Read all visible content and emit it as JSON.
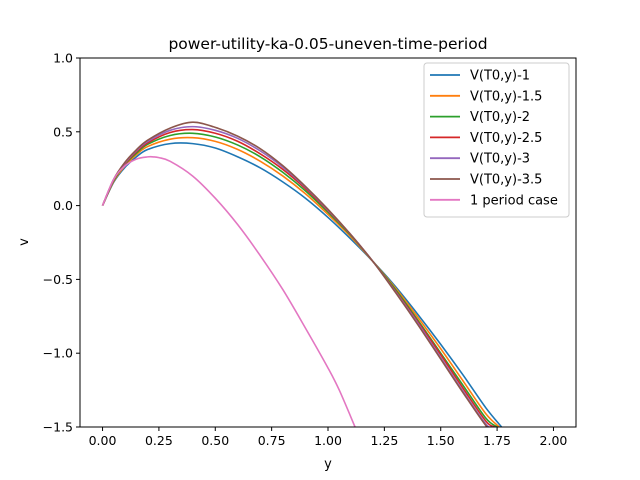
{
  "chart_data": {
    "type": "line",
    "title": "power-utility-ka-0.05-uneven-time-period",
    "xlabel": "y",
    "ylabel": "v",
    "xlim": [
      -0.1,
      2.1
    ],
    "ylim": [
      -1.5,
      1.0
    ],
    "xticks": [
      0.0,
      0.25,
      0.5,
      0.75,
      1.0,
      1.25,
      1.5,
      1.75,
      2.0
    ],
    "xtick_labels": [
      "0.00",
      "0.25",
      "0.50",
      "0.75",
      "1.00",
      "1.25",
      "1.50",
      "1.75",
      "2.00"
    ],
    "yticks": [
      -1.5,
      -1.0,
      -0.5,
      0.0,
      0.5,
      1.0
    ],
    "ytick_labels": [
      "−1.5",
      "−1.0",
      "−0.5",
      "0.0",
      "0.5",
      "1.0"
    ],
    "legend_position": "top-right",
    "series": [
      {
        "name": "V(T0,y)-1",
        "color": "#1f77b4",
        "x": [
          0.0,
          0.05,
          0.1,
          0.15,
          0.2,
          0.3,
          0.4,
          0.5,
          0.6,
          0.7,
          0.8,
          0.9,
          1.0,
          1.1,
          1.2,
          1.3,
          1.4,
          1.5,
          1.6,
          1.7,
          1.77
        ],
        "y": [
          0.0,
          0.16,
          0.26,
          0.33,
          0.38,
          0.42,
          0.42,
          0.39,
          0.33,
          0.255,
          0.16,
          0.05,
          -0.08,
          -0.225,
          -0.38,
          -0.55,
          -0.74,
          -0.94,
          -1.15,
          -1.37,
          -1.5
        ]
      },
      {
        "name": "V(T0,y)-1.5",
        "color": "#ff7f0e",
        "x": [
          0.0,
          0.05,
          0.1,
          0.15,
          0.2,
          0.3,
          0.4,
          0.5,
          0.6,
          0.7,
          0.8,
          0.9,
          1.0,
          1.1,
          1.2,
          1.3,
          1.4,
          1.5,
          1.6,
          1.7,
          1.76
        ],
        "y": [
          0.0,
          0.165,
          0.27,
          0.345,
          0.4,
          0.45,
          0.46,
          0.435,
          0.38,
          0.3,
          0.2,
          0.08,
          -0.06,
          -0.21,
          -0.38,
          -0.56,
          -0.76,
          -0.97,
          -1.19,
          -1.41,
          -1.5
        ]
      },
      {
        "name": "V(T0,y)-2",
        "color": "#2ca02c",
        "x": [
          0.0,
          0.05,
          0.1,
          0.15,
          0.2,
          0.3,
          0.4,
          0.5,
          0.6,
          0.7,
          0.8,
          0.9,
          1.0,
          1.1,
          1.2,
          1.3,
          1.4,
          1.5,
          1.6,
          1.7,
          1.75
        ],
        "y": [
          0.0,
          0.17,
          0.28,
          0.355,
          0.415,
          0.475,
          0.49,
          0.465,
          0.41,
          0.33,
          0.225,
          0.1,
          -0.045,
          -0.2,
          -0.38,
          -0.57,
          -0.78,
          -1.0,
          -1.22,
          -1.44,
          -1.5
        ]
      },
      {
        "name": "V(T0,y)-2.5",
        "color": "#d62728",
        "x": [
          0.0,
          0.05,
          0.1,
          0.15,
          0.2,
          0.3,
          0.4,
          0.5,
          0.6,
          0.7,
          0.8,
          0.9,
          1.0,
          1.1,
          1.2,
          1.3,
          1.4,
          1.5,
          1.6,
          1.7,
          1.74
        ],
        "y": [
          0.0,
          0.175,
          0.285,
          0.365,
          0.425,
          0.495,
          0.515,
          0.49,
          0.435,
          0.35,
          0.245,
          0.115,
          -0.035,
          -0.195,
          -0.38,
          -0.58,
          -0.79,
          -1.01,
          -1.24,
          -1.46,
          -1.5
        ]
      },
      {
        "name": "V(T0,y)-3",
        "color": "#9467bd",
        "x": [
          0.0,
          0.05,
          0.1,
          0.15,
          0.2,
          0.3,
          0.4,
          0.5,
          0.6,
          0.7,
          0.8,
          0.9,
          1.0,
          1.1,
          1.2,
          1.3,
          1.4,
          1.5,
          1.6,
          1.7,
          1.73
        ],
        "y": [
          0.0,
          0.178,
          0.29,
          0.372,
          0.435,
          0.51,
          0.535,
          0.51,
          0.455,
          0.37,
          0.26,
          0.125,
          -0.03,
          -0.195,
          -0.38,
          -0.585,
          -0.8,
          -1.03,
          -1.26,
          -1.48,
          -1.5
        ]
      },
      {
        "name": "V(T0,y)-3.5",
        "color": "#8c564b",
        "x": [
          0.0,
          0.05,
          0.1,
          0.15,
          0.2,
          0.3,
          0.4,
          0.5,
          0.6,
          0.7,
          0.8,
          0.9,
          1.0,
          1.1,
          1.2,
          1.3,
          1.4,
          1.5,
          1.6,
          1.7,
          1.72
        ],
        "y": [
          0.0,
          0.18,
          0.295,
          0.378,
          0.443,
          0.525,
          0.565,
          0.53,
          0.47,
          0.385,
          0.27,
          0.13,
          -0.025,
          -0.195,
          -0.38,
          -0.59,
          -0.81,
          -1.04,
          -1.27,
          -1.49,
          -1.5
        ]
      },
      {
        "name": "1 period case",
        "color": "#e377c2",
        "x": [
          0.0,
          0.05,
          0.1,
          0.15,
          0.2,
          0.225,
          0.25,
          0.3,
          0.4,
          0.5,
          0.6,
          0.7,
          0.8,
          0.9,
          1.0,
          1.05,
          1.12
        ],
        "y": [
          0.0,
          0.18,
          0.27,
          0.315,
          0.33,
          0.33,
          0.325,
          0.3,
          0.2,
          0.05,
          -0.13,
          -0.34,
          -0.57,
          -0.83,
          -1.1,
          -1.25,
          -1.5
        ]
      }
    ]
  }
}
